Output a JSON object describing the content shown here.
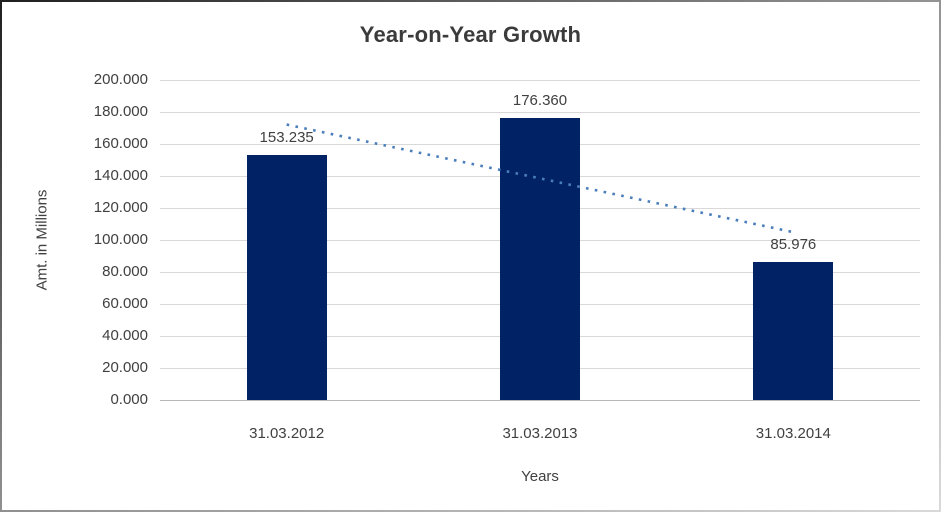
{
  "chart_data": {
    "type": "bar",
    "title": "Year-on-Year Growth",
    "xlabel": "Years",
    "ylabel": "Amt. in Millions",
    "categories": [
      "31.03.2012",
      "31.03.2013",
      "31.03.2014"
    ],
    "values": [
      153.235,
      176.36,
      85.976
    ],
    "data_labels": [
      "153.235",
      "176.360",
      "85.976"
    ],
    "ylim": [
      0,
      200
    ],
    "ytick_step": 20,
    "ytick_labels": [
      "200.000",
      "180.000",
      "160.000",
      "140.000",
      "120.000",
      "100.000",
      "80.000",
      "60.000",
      "40.000",
      "20.000",
      "0.000"
    ],
    "grid": true,
    "legend_position": "none",
    "colors": {
      "bar": "#022266",
      "trendline": "#4a7ebb",
      "gridline": "#d9d9d9",
      "axis_line": "#b7b7b7",
      "text": "#404040",
      "title_text": "#3b3b3b",
      "background": "#ffffff"
    },
    "trendline": {
      "type": "linear",
      "style": "dotted"
    }
  }
}
